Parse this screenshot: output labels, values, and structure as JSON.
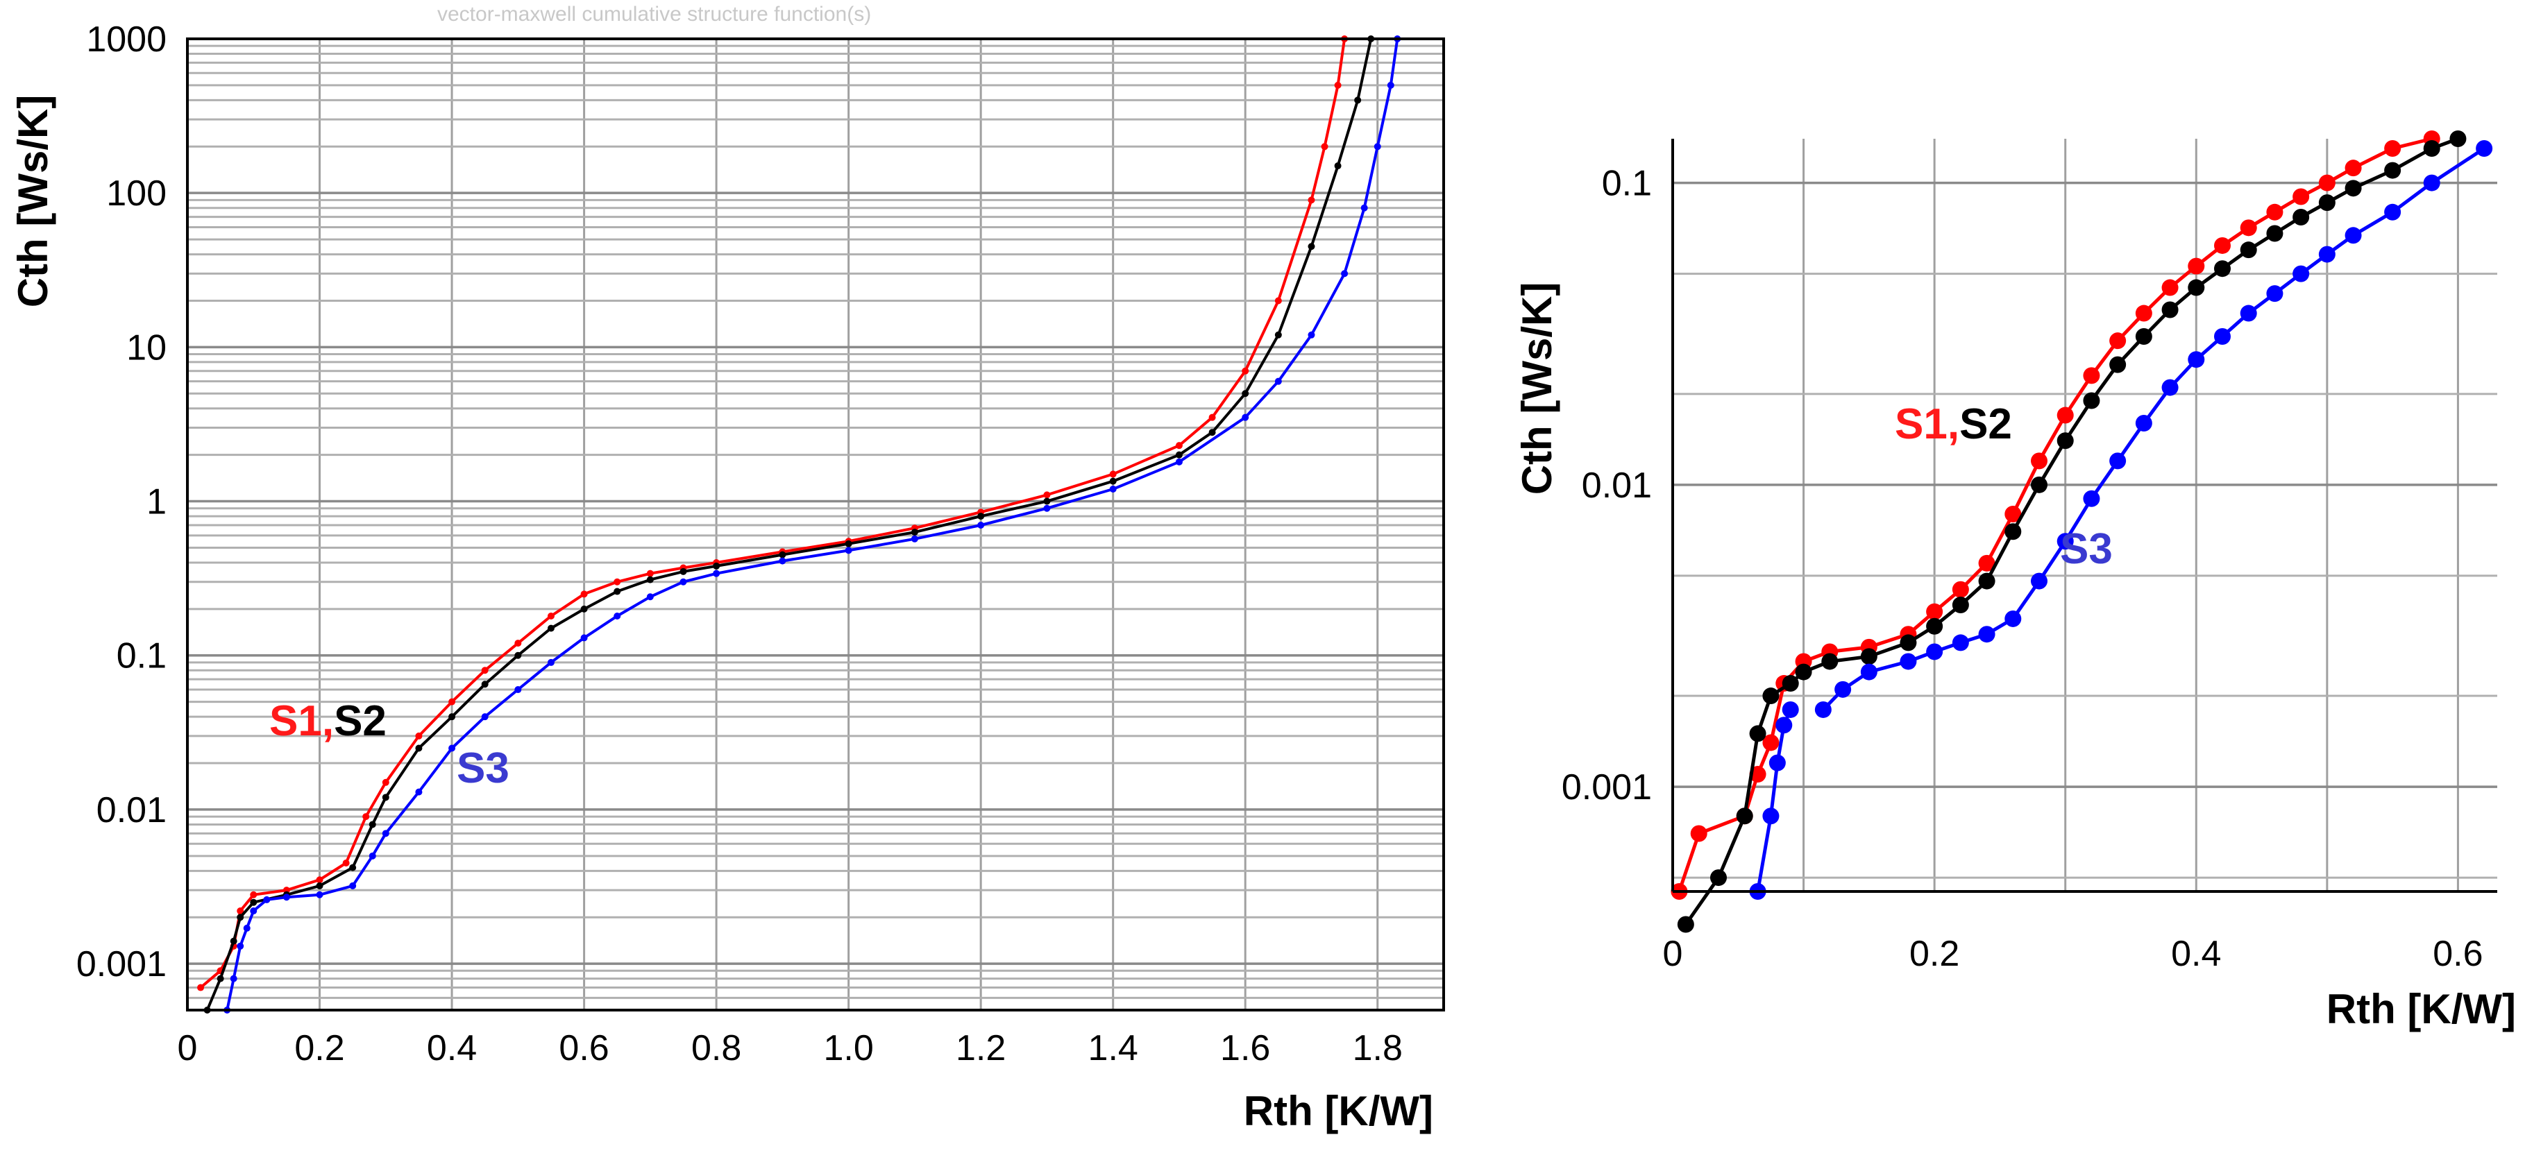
{
  "chart_data": [
    {
      "type": "line",
      "faint_title": "vector-maxwell cumulative structure function(s)",
      "xlabel": "Rth [K/W]",
      "ylabel": "Cth [Ws/K]",
      "xlim": [
        0,
        1.9
      ],
      "ylim": [
        0.0005,
        1000
      ],
      "y_scale": "log",
      "grid": true,
      "x_ticks": [
        "0",
        "0.2",
        "0.4",
        "0.6",
        "0.8",
        "1.0",
        "1.2",
        "1.4",
        "1.6",
        "1.8"
      ],
      "y_ticks": [
        "0.001",
        "0.01",
        "0.1",
        "1",
        "10",
        "100",
        "1000"
      ],
      "annotations": {
        "s1": "S1,",
        "s2": "S2",
        "s3": "S3"
      },
      "series": [
        {
          "name": "S1",
          "color": "#ff0000",
          "x": [
            0.02,
            0.05,
            0.07,
            0.08,
            0.1,
            0.15,
            0.2,
            0.24,
            0.27,
            0.3,
            0.35,
            0.4,
            0.45,
            0.5,
            0.55,
            0.6,
            0.65,
            0.7,
            0.75,
            0.8,
            0.9,
            1.0,
            1.1,
            1.2,
            1.3,
            1.4,
            1.5,
            1.55,
            1.6,
            1.65,
            1.7,
            1.72,
            1.74,
            1.75
          ],
          "y": [
            0.0007,
            0.0009,
            0.0013,
            0.0022,
            0.0028,
            0.003,
            0.0035,
            0.0045,
            0.009,
            0.015,
            0.03,
            0.05,
            0.08,
            0.12,
            0.18,
            0.25,
            0.3,
            0.34,
            0.37,
            0.4,
            0.47,
            0.55,
            0.67,
            0.85,
            1.1,
            1.5,
            2.3,
            3.5,
            7,
            20,
            90,
            200,
            500,
            1000
          ]
        },
        {
          "name": "S2",
          "color": "#000000",
          "x": [
            0.03,
            0.05,
            0.07,
            0.08,
            0.1,
            0.15,
            0.2,
            0.25,
            0.28,
            0.3,
            0.35,
            0.4,
            0.45,
            0.5,
            0.55,
            0.6,
            0.65,
            0.7,
            0.75,
            0.8,
            0.9,
            1.0,
            1.1,
            1.2,
            1.3,
            1.4,
            1.5,
            1.55,
            1.6,
            1.65,
            1.7,
            1.74,
            1.77,
            1.79
          ],
          "y": [
            0.0005,
            0.0008,
            0.0014,
            0.002,
            0.0025,
            0.0028,
            0.0032,
            0.0042,
            0.008,
            0.012,
            0.025,
            0.04,
            0.065,
            0.1,
            0.15,
            0.2,
            0.26,
            0.31,
            0.35,
            0.38,
            0.45,
            0.53,
            0.63,
            0.8,
            1.0,
            1.35,
            2.0,
            2.8,
            5,
            12,
            45,
            150,
            400,
            1000
          ]
        },
        {
          "name": "S3",
          "color": "#0000ff",
          "x": [
            0.06,
            0.07,
            0.08,
            0.09,
            0.1,
            0.12,
            0.15,
            0.2,
            0.25,
            0.28,
            0.3,
            0.35,
            0.4,
            0.45,
            0.5,
            0.55,
            0.6,
            0.65,
            0.7,
            0.75,
            0.8,
            0.9,
            1.0,
            1.1,
            1.2,
            1.3,
            1.4,
            1.5,
            1.6,
            1.65,
            1.7,
            1.75,
            1.78,
            1.8,
            1.82,
            1.83
          ],
          "y": [
            0.0005,
            0.0008,
            0.0013,
            0.0017,
            0.0022,
            0.0026,
            0.0027,
            0.0028,
            0.0032,
            0.005,
            0.007,
            0.013,
            0.025,
            0.04,
            0.06,
            0.09,
            0.13,
            0.18,
            0.24,
            0.3,
            0.34,
            0.41,
            0.48,
            0.57,
            0.7,
            0.9,
            1.2,
            1.8,
            3.5,
            6,
            12,
            30,
            80,
            200,
            500,
            1000
          ]
        }
      ]
    },
    {
      "type": "line",
      "xlabel": "Rth [K/W]",
      "ylabel": "Cth [Ws/K]",
      "xlim": [
        0,
        0.63
      ],
      "ylim": [
        0.00045,
        0.14
      ],
      "y_scale": "log",
      "grid": true,
      "x_ticks": [
        "0",
        "0.2",
        "0.4",
        "0.6"
      ],
      "y_ticks": [
        "0.001",
        "0.01",
        "0.1"
      ],
      "annotations": {
        "s1": "S1,",
        "s2": "S2",
        "s3": "S3"
      },
      "series": [
        {
          "name": "S1",
          "color": "#ff0000",
          "x": [
            0.005,
            0.02,
            0.055,
            0.065,
            0.075,
            0.085,
            0.1,
            0.12,
            0.15,
            0.18,
            0.2,
            0.22,
            0.24,
            0.26,
            0.28,
            0.3,
            0.32,
            0.34,
            0.36,
            0.38,
            0.4,
            0.42,
            0.44,
            0.46,
            0.48,
            0.5,
            0.52,
            0.55,
            0.58
          ],
          "y": [
            0.00045,
            0.0007,
            0.0008,
            0.0011,
            0.0014,
            0.0022,
            0.0026,
            0.0028,
            0.0029,
            0.0032,
            0.0038,
            0.0045,
            0.0055,
            0.008,
            0.012,
            0.017,
            0.023,
            0.03,
            0.037,
            0.045,
            0.053,
            0.062,
            0.071,
            0.08,
            0.09,
            0.1,
            0.112,
            0.13,
            0.14
          ]
        },
        {
          "name": "S2",
          "color": "#000000",
          "x": [
            0.01,
            0.035,
            0.055,
            0.065,
            0.075,
            0.09,
            0.1,
            0.12,
            0.15,
            0.18,
            0.2,
            0.22,
            0.24,
            0.26,
            0.28,
            0.3,
            0.32,
            0.34,
            0.36,
            0.38,
            0.4,
            0.42,
            0.44,
            0.46,
            0.48,
            0.5,
            0.52,
            0.55,
            0.58,
            0.6
          ],
          "y": [
            0.00035,
            0.0005,
            0.0008,
            0.0015,
            0.002,
            0.0022,
            0.0024,
            0.0026,
            0.0027,
            0.003,
            0.0034,
            0.004,
            0.0048,
            0.007,
            0.01,
            0.014,
            0.019,
            0.025,
            0.031,
            0.038,
            0.045,
            0.052,
            0.06,
            0.068,
            0.077,
            0.086,
            0.096,
            0.11,
            0.13,
            0.14
          ]
        },
        {
          "name": "S3",
          "color": "#0000ff",
          "x": [
            0.065,
            0.075,
            0.08,
            0.085,
            0.09
          ],
          "y": [
            0.00045,
            0.0008,
            0.0012,
            0.0016,
            0.0018
          ]
        },
        {
          "name": "S3",
          "color": "#0000ff",
          "x": [
            0.115,
            0.13,
            0.15,
            0.18,
            0.2,
            0.22,
            0.24,
            0.26,
            0.28,
            0.3,
            0.32,
            0.34,
            0.36,
            0.38,
            0.4,
            0.42,
            0.44,
            0.46,
            0.48,
            0.5,
            0.52,
            0.55,
            0.58,
            0.62
          ],
          "y": [
            0.0018,
            0.0021,
            0.0024,
            0.0026,
            0.0028,
            0.003,
            0.0032,
            0.0036,
            0.0048,
            0.0065,
            0.009,
            0.012,
            0.016,
            0.021,
            0.026,
            0.031,
            0.037,
            0.043,
            0.05,
            0.058,
            0.067,
            0.08,
            0.1,
            0.13
          ]
        }
      ]
    }
  ]
}
